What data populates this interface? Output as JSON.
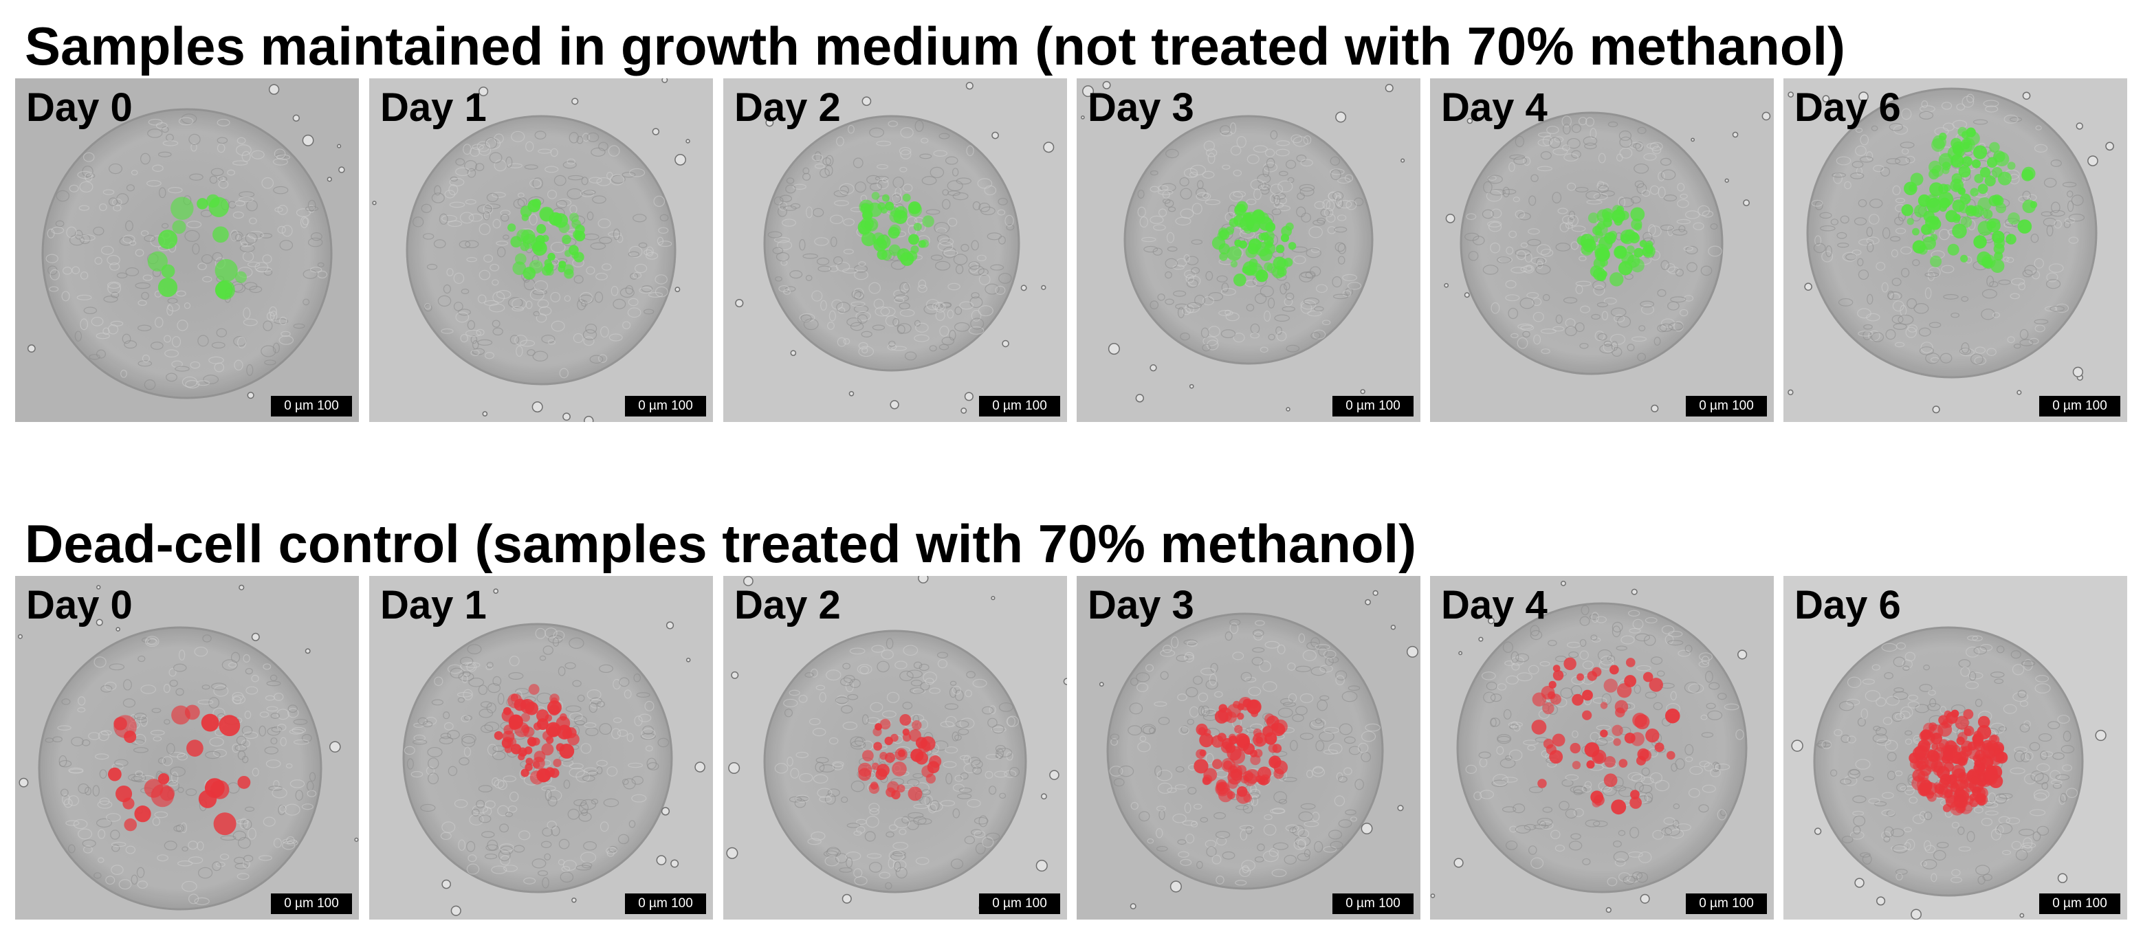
{
  "rows": [
    {
      "title": "Samples maintained in growth medium (not treated with 70% methanol)",
      "stain_color": "#52e33c",
      "panels": [
        {
          "day": "Day 0",
          "scale": "0  µm  100",
          "background": "#b4b4b4"
        },
        {
          "day": "Day 1",
          "scale": "0  µm  100",
          "background": "#c6c6c6"
        },
        {
          "day": "Day 2",
          "scale": "0  µm  100",
          "background": "#c8c8c8"
        },
        {
          "day": "Day 3",
          "scale": "0  µm  100",
          "background": "#c4c4c4"
        },
        {
          "day": "Day 4",
          "scale": "0  µm  100",
          "background": "#c2c2c2"
        },
        {
          "day": "Day 6",
          "scale": "0  µm  100",
          "background": "#cacaca"
        }
      ]
    },
    {
      "title": "Dead-cell control (samples treated with 70% methanol)",
      "stain_color": "#e8353b",
      "panels": [
        {
          "day": "Day 0",
          "scale": "0  µm  100",
          "background": "#bdbdbd"
        },
        {
          "day": "Day 1",
          "scale": "0  µm  100",
          "background": "#c6c6c6"
        },
        {
          "day": "Day 2",
          "scale": "0  µm  100",
          "background": "#c8c8c8"
        },
        {
          "day": "Day 3",
          "scale": "0  µm  100",
          "background": "#bababa"
        },
        {
          "day": "Day 4",
          "scale": "0  µm  100",
          "background": "#c3c3c3"
        },
        {
          "day": "Day 6",
          "scale": "0  µm  100",
          "background": "#cfcfcf"
        }
      ]
    }
  ]
}
